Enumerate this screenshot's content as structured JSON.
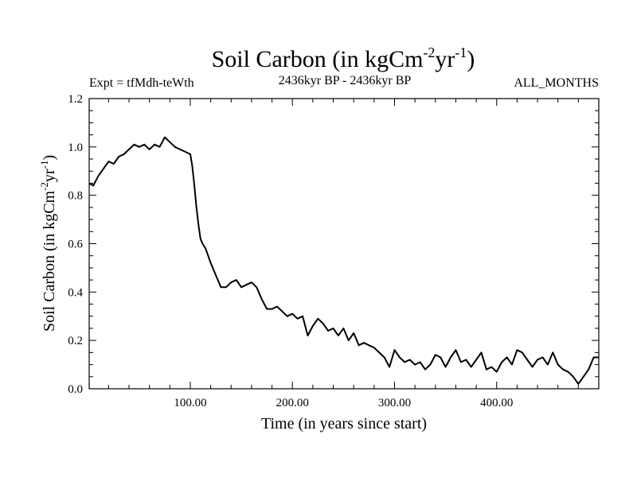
{
  "chart_data": {
    "type": "line",
    "title": "Soil Carbon (in kgCm",
    "title_sup1": "-2",
    "title_mid": "yr",
    "title_sup2": "-1",
    "title_end": ")",
    "subtitle_left": "Expt = tfMdh-teWth",
    "subtitle_center": "2436kyr BP - 2436kyr BP",
    "subtitle_right": "ALL_MONTHS",
    "xlabel": "Time (in years since start)",
    "ylabel": "Soil Carbon (in kgCm",
    "ylabel_sup1": "-2",
    "ylabel_mid": "yr",
    "ylabel_sup2": "-1",
    "ylabel_end": ")",
    "xlim": [
      1,
      500
    ],
    "ylim": [
      0.0,
      1.2
    ],
    "x_ticks": [
      100,
      200,
      300,
      400
    ],
    "x_tick_labels": [
      "100.00",
      "200.00",
      "300.00",
      "400.00"
    ],
    "y_ticks": [
      0.0,
      0.2,
      0.4,
      0.6,
      0.8,
      1.0,
      1.2
    ],
    "y_tick_labels": [
      "0.0",
      "0.2",
      "0.4",
      "0.6",
      "0.8",
      "1.0",
      "1.2"
    ],
    "series": [
      {
        "name": "Soil Carbon",
        "color": "#000000",
        "x": [
          1,
          5,
          10,
          15,
          20,
          25,
          30,
          35,
          40,
          45,
          50,
          55,
          60,
          65,
          70,
          75,
          80,
          85,
          90,
          95,
          100,
          102,
          104,
          106,
          108,
          110,
          112,
          115,
          120,
          125,
          130,
          135,
          140,
          145,
          150,
          155,
          160,
          165,
          170,
          175,
          180,
          185,
          190,
          195,
          200,
          205,
          210,
          215,
          220,
          225,
          230,
          235,
          240,
          245,
          250,
          255,
          260,
          265,
          270,
          275,
          280,
          285,
          290,
          295,
          300,
          305,
          310,
          315,
          320,
          325,
          330,
          335,
          340,
          345,
          350,
          355,
          360,
          365,
          370,
          375,
          380,
          385,
          390,
          395,
          400,
          405,
          410,
          415,
          420,
          425,
          430,
          435,
          440,
          445,
          450,
          455,
          460,
          465,
          470,
          475,
          480,
          485,
          490,
          495,
          500
        ],
        "values": [
          0.85,
          0.84,
          0.88,
          0.91,
          0.94,
          0.93,
          0.96,
          0.97,
          0.99,
          1.01,
          1.0,
          1.01,
          0.99,
          1.01,
          1.0,
          1.04,
          1.02,
          1.0,
          0.99,
          0.98,
          0.97,
          0.92,
          0.84,
          0.75,
          0.68,
          0.62,
          0.6,
          0.58,
          0.52,
          0.47,
          0.42,
          0.42,
          0.44,
          0.45,
          0.42,
          0.43,
          0.44,
          0.42,
          0.37,
          0.33,
          0.33,
          0.34,
          0.32,
          0.3,
          0.31,
          0.29,
          0.3,
          0.22,
          0.26,
          0.29,
          0.27,
          0.24,
          0.25,
          0.22,
          0.25,
          0.2,
          0.23,
          0.18,
          0.19,
          0.18,
          0.17,
          0.15,
          0.13,
          0.09,
          0.16,
          0.13,
          0.11,
          0.12,
          0.1,
          0.11,
          0.08,
          0.1,
          0.14,
          0.13,
          0.09,
          0.13,
          0.16,
          0.11,
          0.12,
          0.09,
          0.12,
          0.15,
          0.08,
          0.09,
          0.07,
          0.11,
          0.13,
          0.1,
          0.16,
          0.15,
          0.12,
          0.09,
          0.12,
          0.13,
          0.1,
          0.15,
          0.1,
          0.08,
          0.07,
          0.05,
          0.02,
          0.05,
          0.08,
          0.13,
          0.13
        ]
      }
    ]
  }
}
